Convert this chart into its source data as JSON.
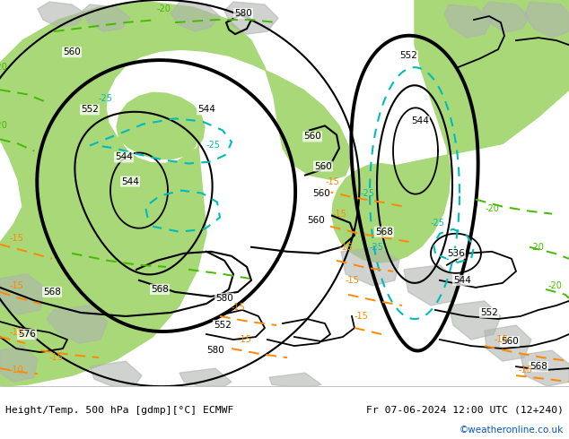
{
  "title_left": "Height/Temp. 500 hPa [gdmp][°C] ECMWF",
  "title_right": "Fr 07-06-2024 12:00 UTC (12+240)",
  "watermark": "©weatheronline.co.uk",
  "bg_color": "#d8d8d8",
  "green_fill": "#a8d878",
  "land_color": "#b8b8b8",
  "footer_bg": "#ffffff",
  "black_contour": "#000000",
  "cyan_contour": "#00bbbb",
  "green_contour": "#44bb00",
  "orange_contour": "#ff8800"
}
